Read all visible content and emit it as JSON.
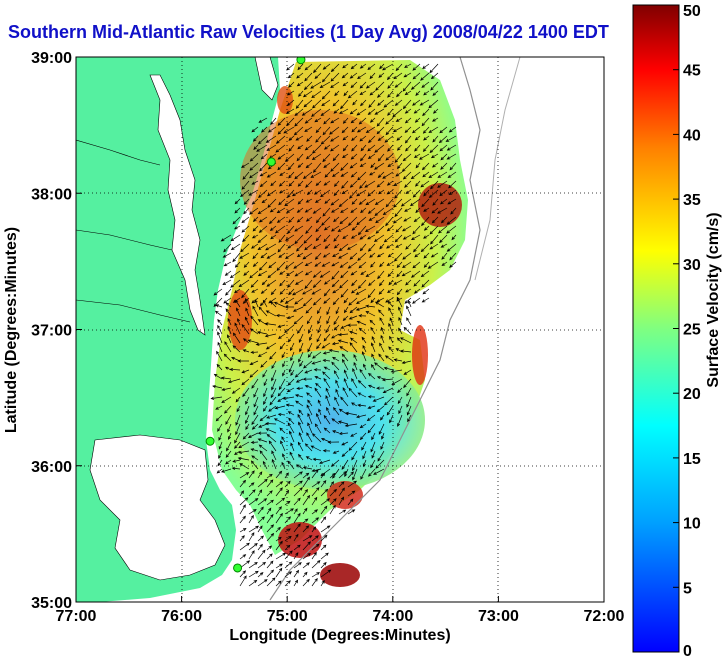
{
  "title": "Southern Mid-Atlantic Raw Velocities (1 Day Avg) 2008/04/22 1400 EDT",
  "map": {
    "xlabel": "Longitude (Degrees:Minutes)",
    "ylabel": "Latitude (Degrees:Minutes)",
    "x_ticks": [
      "77:00",
      "76:00",
      "75:00",
      "74:00",
      "73:00",
      "72:00"
    ],
    "y_ticks": [
      "39:00",
      "38:00",
      "37:00",
      "36:00",
      "35:00"
    ],
    "lon_range": [
      -77,
      -72
    ],
    "lat_range": [
      35,
      39
    ],
    "land_color": "#55f0a0",
    "water_color": "#ffffff",
    "grid": "dotted"
  },
  "colorbar": {
    "label": "Surface Velocity (cm/s)",
    "ticks": [
      "50",
      "45",
      "40",
      "35",
      "30",
      "25",
      "20",
      "15",
      "10",
      "5",
      "0"
    ],
    "range": [
      0,
      50
    ],
    "colormap": "jet"
  },
  "stations": [
    {
      "lon": -74.87,
      "lat": 38.98
    },
    {
      "lon": -75.15,
      "lat": 38.23
    },
    {
      "lon": -75.73,
      "lat": 36.18
    },
    {
      "lon": -75.47,
      "lat": 35.25
    }
  ]
}
